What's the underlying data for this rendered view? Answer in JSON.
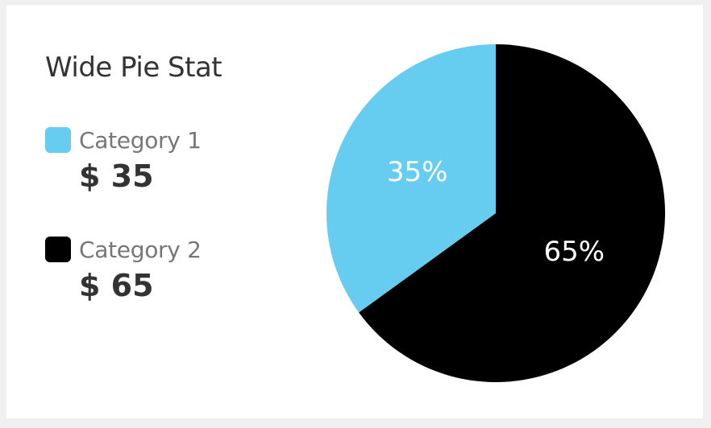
{
  "card": {
    "title": "Wide Pie Stat"
  },
  "legend": [
    {
      "label": "Category 1",
      "value": "$ 35",
      "color": "#66cdf0"
    },
    {
      "label": "Category 2",
      "value": "$ 65",
      "color": "#000000"
    }
  ],
  "chart_data": {
    "type": "pie",
    "title": "Wide Pie Stat",
    "categories": [
      "Category 1",
      "Category 2"
    ],
    "values": [
      35,
      65
    ],
    "slice_labels": [
      "35%",
      "65%"
    ],
    "colors": [
      "#66cdf0",
      "#000000"
    ],
    "legend": "left"
  }
}
